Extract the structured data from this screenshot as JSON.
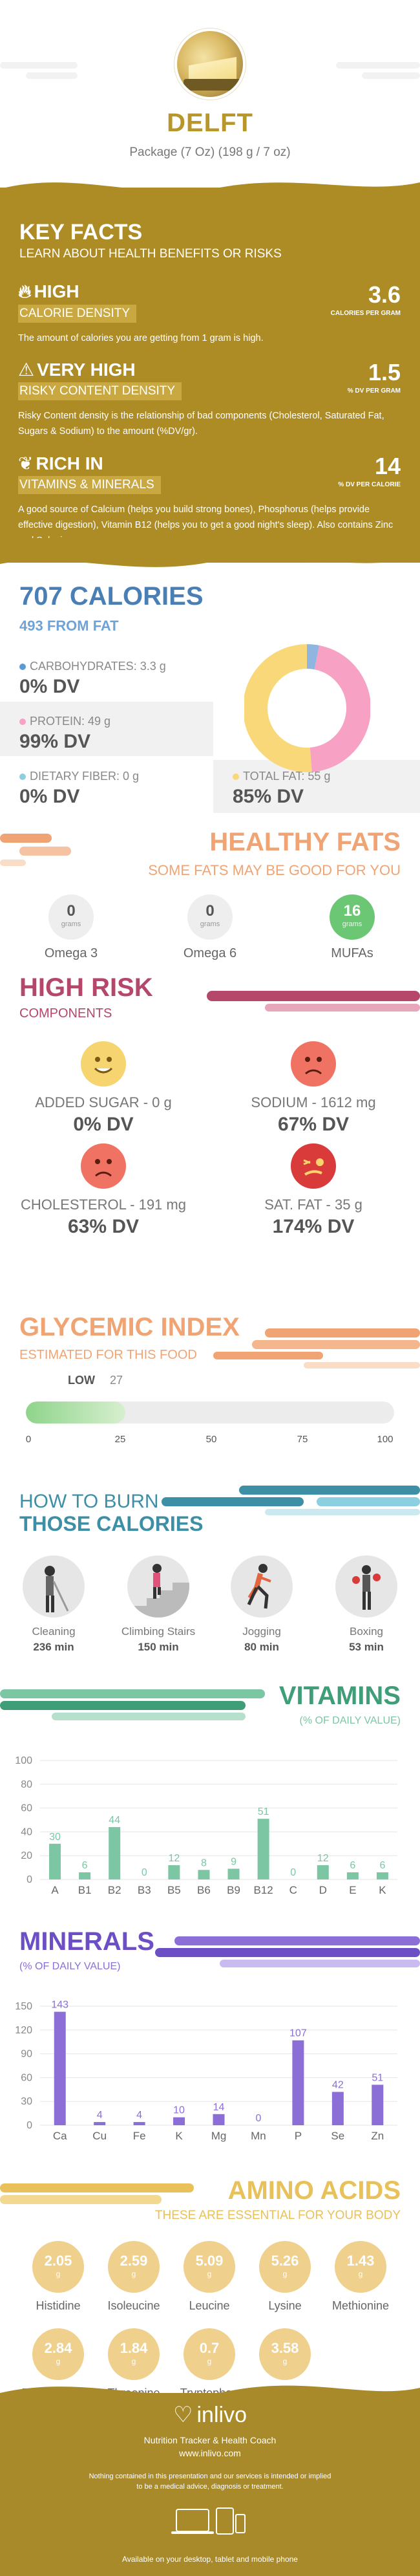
{
  "header": {
    "title": "DELFT",
    "subtitle": "Package (7 Oz) (198 g / 7 oz)"
  },
  "key_facts": {
    "title": "KEY FACTS",
    "subtitle": "LEARN ABOUT HEALTH BENEFITS OR RISKS",
    "facts": [
      {
        "level": "HIGH",
        "label": "CALORIE DENSITY",
        "value": "3.6",
        "unit": "CALORIES PER GRAM",
        "icon": "fire-icon",
        "desc": "The amount of calories you are getting from 1 gram is high."
      },
      {
        "level": "VERY HIGH",
        "label": "RISKY CONTENT DENSITY",
        "value": "1.5",
        "unit": "% DV PER GRAM",
        "icon": "warning-icon",
        "desc": "Risky Content density is the relationship of bad components (Cholesterol, Saturated Fat, Sugars & Sodium) to the amount (%DV/gr)."
      },
      {
        "level": "RICH  IN",
        "label": "VITAMINS & MINERALS",
        "value": "14",
        "unit": "% DV PER CALORIE",
        "icon": "leaf-icon",
        "desc": "A good source of Calcium (helps you build strong bones), Phosphorus (helps provide effective digestion), Vitamin B12 (helps you to get a good night's sleep). Also contains Zinc and Selenium."
      }
    ]
  },
  "calories": {
    "title": "707 CALORIES",
    "from_fat": "493 FROM FAT",
    "macros": [
      {
        "name": "CARBOHYDRATES: 3.3 g",
        "dv": "0% DV",
        "color": "#5b9bd5"
      },
      {
        "name": "PROTEIN: 49 g",
        "dv": "99% DV",
        "color": "#f7a1c4"
      },
      {
        "name": "DIETARY FIBER: 0 g",
        "dv": "0% DV",
        "color": "#8ccfe0"
      },
      {
        "name": "TOTAL FAT: 55 g",
        "dv": "85% DV",
        "color": "#f9d879"
      }
    ]
  },
  "donut": {
    "segments": [
      {
        "name": "carbohydrates",
        "grams": 3.3,
        "color": "#8fb6e0"
      },
      {
        "name": "protein",
        "grams": 49,
        "color": "#f7a1c4"
      },
      {
        "name": "fiber",
        "grams": 0,
        "color": "#8ccfe0"
      },
      {
        "name": "fat",
        "grams": 55,
        "color": "#f9d879"
      }
    ]
  },
  "healthy_fats": {
    "title": "HEALTHY FATS",
    "subtitle": "SOME FATS MAY BE GOOD FOR YOU",
    "items": [
      {
        "value": "0",
        "unit": "grams",
        "name": "Omega 3",
        "color": "#eeeeee",
        "text_color": "#555555"
      },
      {
        "value": "0",
        "unit": "grams",
        "name": "Omega 6",
        "color": "#eeeeee",
        "text_color": "#555555"
      },
      {
        "value": "16",
        "unit": "grams",
        "name": "MUFAs",
        "color": "#6cc774",
        "text_color": "#ffffff"
      }
    ]
  },
  "high_risk": {
    "title": "HIGH RISK",
    "subtitle": "COMPONENTS",
    "items": [
      {
        "name": "ADDED SUGAR - 0 g",
        "dv": "0% DV",
        "face": "happy",
        "color": "#f6d470"
      },
      {
        "name": "SODIUM - 1612 mg",
        "dv": "67% DV",
        "face": "sad",
        "color": "#f07262"
      },
      {
        "name": "CHOLESTEROL - 191 mg",
        "dv": "63% DV",
        "face": "sad",
        "color": "#f07262"
      },
      {
        "name": "SAT. FAT - 35 g",
        "dv": "174% DV",
        "face": "sick",
        "color": "#d93a3a"
      }
    ]
  },
  "glycemic": {
    "title": "GLYCEMIC INDEX",
    "subtitle": "ESTIMATED FOR THIS FOOD",
    "label": "LOW",
    "value": 27,
    "value_text": "27",
    "ticks": [
      "0",
      "25",
      "50",
      "75",
      "100"
    ],
    "max": 100
  },
  "burn": {
    "title1": "HOW TO BURN",
    "title2": "THOSE CALORIES",
    "activities": [
      {
        "name": "Cleaning",
        "minutes": "236 min",
        "icon": "cleaning-icon"
      },
      {
        "name": "Climbing Stairs",
        "minutes": "150 min",
        "icon": "stairs-icon"
      },
      {
        "name": "Jogging",
        "minutes": "80 min",
        "icon": "jogging-icon"
      },
      {
        "name": "Boxing",
        "minutes": "53 min",
        "icon": "boxing-icon"
      }
    ]
  },
  "vitamins": {
    "title": "VITAMINS",
    "subtitle": "(% OF DAILY VALUE)",
    "color": "#7cc6a3",
    "chart_data": {
      "type": "bar",
      "categories": [
        "A",
        "B1",
        "B2",
        "B3",
        "B5",
        "B6",
        "B9",
        "B12",
        "C",
        "D",
        "E",
        "K"
      ],
      "values": [
        30,
        6,
        44,
        0,
        12,
        8,
        9,
        51,
        0,
        12,
        6,
        6
      ],
      "ylim": [
        0,
        100
      ],
      "yticks": [
        "0",
        "20",
        "40",
        "60",
        "80",
        "100"
      ]
    }
  },
  "minerals": {
    "title": "MINERALS",
    "subtitle": "(% OF DAILY VALUE)",
    "color": "#8b6fd6",
    "chart_data": {
      "type": "bar",
      "categories": [
        "Ca",
        "Cu",
        "Fe",
        "K",
        "Mg",
        "Mn",
        "P",
        "Se",
        "Zn"
      ],
      "values": [
        143,
        4,
        4,
        10,
        14,
        0,
        107,
        42,
        51
      ],
      "ylim": [
        0,
        150
      ],
      "yticks": [
        "0",
        "30",
        "60",
        "90",
        "120",
        "150"
      ]
    }
  },
  "amino": {
    "title": "AMINO ACIDS",
    "subtitle": "THESE ARE ESSENTIAL FOR YOUR BODY",
    "items": [
      {
        "value": "2.05",
        "unit": "g",
        "name": "Histidine"
      },
      {
        "value": "2.59",
        "unit": "g",
        "name": "Isoleucine"
      },
      {
        "value": "5.09",
        "unit": "g",
        "name": "Leucine"
      },
      {
        "value": "5.26",
        "unit": "g",
        "name": "Lysine"
      },
      {
        "value": "1.43",
        "unit": "g",
        "name": "Methionine"
      },
      {
        "value": "2.84",
        "unit": "g",
        "name": "Phenylalanine"
      },
      {
        "value": "1.84",
        "unit": "g",
        "name": "Threonine"
      },
      {
        "value": "0.7",
        "unit": "g",
        "name": "Tryptophan"
      },
      {
        "value": "3.58",
        "unit": "g",
        "name": "Valine"
      }
    ]
  },
  "footer": {
    "brand": "inlivo",
    "tagline": "Nutrition Tracker & Health Coach",
    "url": "www.inlivo.com",
    "disclaimer1": "Nothing contained in this presentation and our services is intended or implied",
    "disclaimer2": "to be a medical advice, diagnosis or treatment.",
    "available": "Available on your desktop, tablet and mobile phone"
  }
}
